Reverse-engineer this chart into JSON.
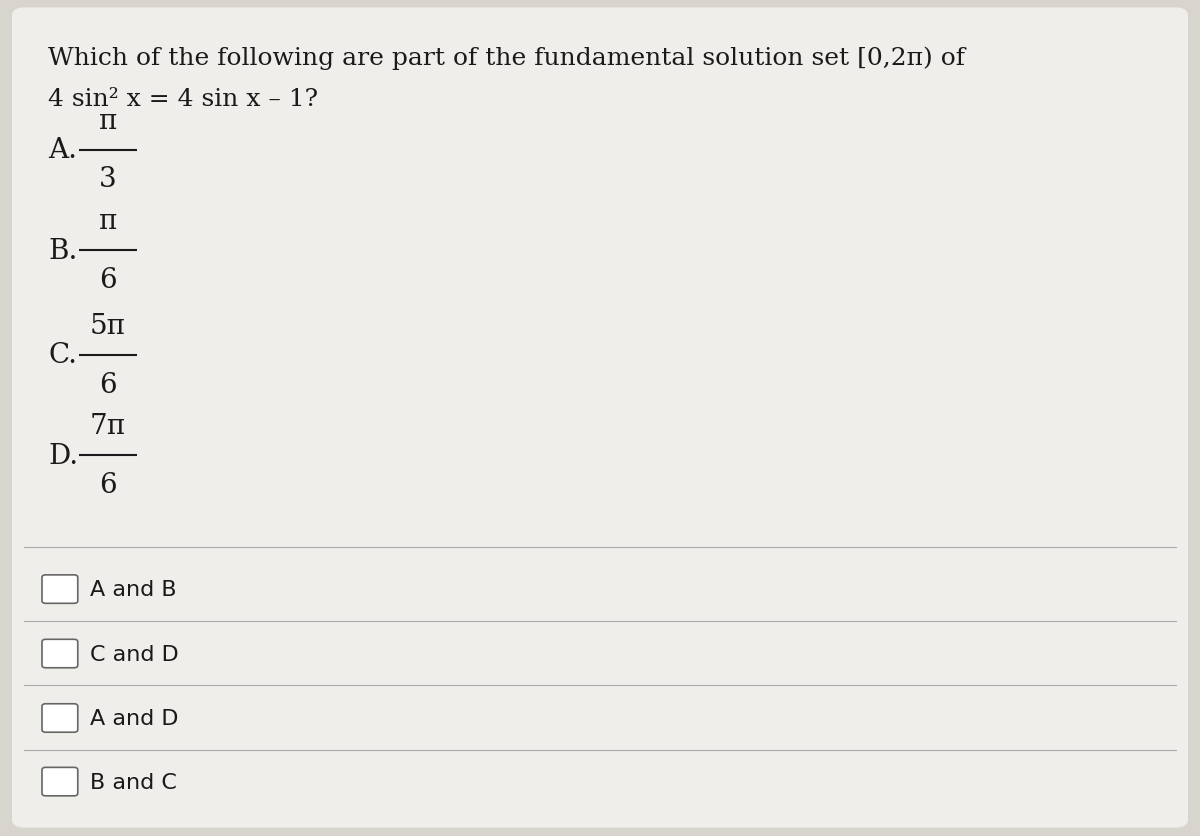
{
  "background_color": "#d8d4ce",
  "card_color": "#f0eeeb",
  "title_line1": "Which of the following are part of the fundamental solution set [0,2π) of",
  "title_line2": "4 sin² x = 4 sin x – 1?",
  "options": [
    {
      "label": "A.",
      "numerator": "π",
      "denominator": "3"
    },
    {
      "label": "B.",
      "numerator": "π",
      "denominator": "6"
    },
    {
      "label": "C.",
      "numerator": "5π",
      "denominator": "6"
    },
    {
      "label": "D.",
      "numerator": "7π",
      "denominator": "6"
    }
  ],
  "answer_choices": [
    "A and B",
    "C and D",
    "A and D",
    "B and C"
  ],
  "text_color": "#1a1a1a",
  "checkbox_color": "#666666",
  "font_size_title": 18,
  "font_size_options": 20,
  "font_size_answers": 16
}
